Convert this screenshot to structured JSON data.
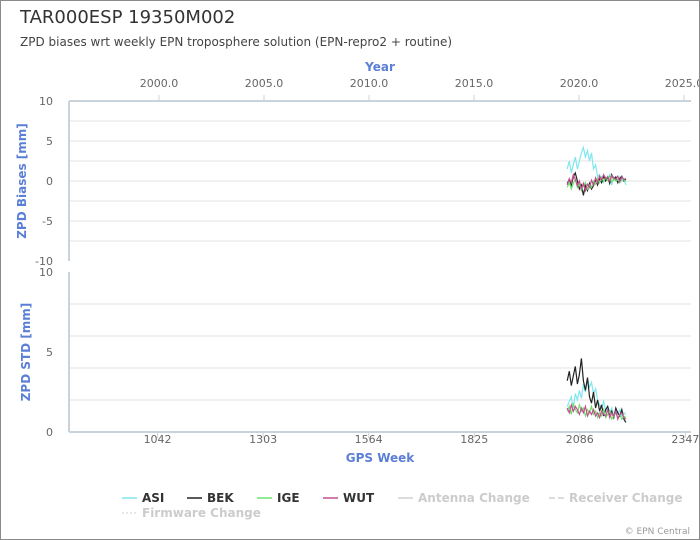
{
  "title": "TAR000ESP 19350M002",
  "subtitle": "ZPD biases wrt weekly EPN troposphere solution (EPN-repro2 + routine)",
  "credits": "© EPN Central",
  "chart_data": [
    {
      "type": "line",
      "panel": "biases",
      "ylabel": "ZPD Biases [mm]",
      "ylim": [
        -10,
        10
      ],
      "yticks": [
        "10",
        "5",
        "0",
        "-5",
        "-10"
      ],
      "x2label": "Year",
      "x2ticks": [
        "2000.0",
        "2005.0",
        "2010.0",
        "2015.0",
        "2020.0",
        "2025.0"
      ],
      "x_unit": "GPS week",
      "grid": true,
      "series": [
        {
          "name": "ASI",
          "color": "#7fe7ee",
          "x": [
            2055,
            2060,
            2065,
            2070,
            2075,
            2080,
            2085,
            2090,
            2095,
            2100,
            2105,
            2110,
            2115,
            2120,
            2125,
            2130,
            2135,
            2140,
            2145,
            2150,
            2155,
            2160,
            2165,
            2170,
            2175,
            2180,
            2185,
            2190,
            2195,
            2200
          ],
          "values": [
            1.5,
            2.5,
            1.0,
            2.0,
            3.0,
            1.5,
            2.5,
            3.5,
            4.2,
            3.0,
            3.8,
            2.5,
            3.5,
            1.5,
            2.0,
            0.5,
            0.8,
            0.0,
            -0.2,
            0.5,
            0.2,
            0.8,
            -0.5,
            0.5,
            0.3,
            -0.3,
            0.5,
            0.0,
            0.3,
            -0.5
          ]
        },
        {
          "name": "BEK",
          "color": "#222222",
          "x": [
            2055,
            2060,
            2065,
            2070,
            2075,
            2080,
            2085,
            2090,
            2095,
            2100,
            2105,
            2110,
            2115,
            2120,
            2125,
            2130,
            2135,
            2140,
            2145,
            2150,
            2155,
            2160,
            2165,
            2170,
            2175,
            2180,
            2185,
            2190,
            2195,
            2200
          ],
          "values": [
            -0.3,
            0.2,
            -0.5,
            0.5,
            1.0,
            0.0,
            -1.0,
            -0.5,
            -1.8,
            -0.5,
            -1.2,
            -0.3,
            -1.0,
            -0.6,
            0.2,
            -0.5,
            0.3,
            -0.2,
            0.6,
            0.0,
            0.5,
            -0.3,
            0.8,
            0.2,
            0.5,
            -0.2,
            0.3,
            0.6,
            0.0,
            0.2
          ]
        },
        {
          "name": "IGE",
          "color": "#6ee36e",
          "x": [
            2055,
            2060,
            2065,
            2070,
            2075,
            2080,
            2085,
            2090,
            2095,
            2100,
            2105,
            2110,
            2115,
            2120,
            2125,
            2130,
            2135,
            2140,
            2145,
            2150,
            2155,
            2160,
            2165,
            2170,
            2175,
            2180,
            2185,
            2190,
            2195,
            2200
          ],
          "values": [
            -0.8,
            -0.2,
            -1.0,
            -0.3,
            0.2,
            -0.8,
            -0.3,
            -1.2,
            -0.6,
            -0.2,
            -1.0,
            -0.5,
            -0.8,
            0.0,
            -0.4,
            0.3,
            -0.2,
            0.5,
            0.0,
            0.4,
            0.1,
            0.6,
            -0.1,
            0.3,
            0.0,
            0.2,
            -0.2,
            0.4,
            0.1,
            0.0
          ]
        },
        {
          "name": "WUT",
          "color": "#c44f8f",
          "x": [
            2055,
            2060,
            2065,
            2070,
            2075,
            2080,
            2085,
            2090,
            2095,
            2100,
            2105,
            2110,
            2115,
            2120,
            2125,
            2130,
            2135,
            2140,
            2145,
            2150,
            2155,
            2160,
            2165,
            2170,
            2175,
            2180,
            2185,
            2190,
            2195,
            2200
          ],
          "values": [
            -0.5,
            0.3,
            -0.2,
            0.8,
            0.2,
            -0.6,
            0.0,
            -1.0,
            -0.3,
            -1.2,
            -0.4,
            -0.8,
            0.1,
            -0.5,
            0.4,
            -0.2,
            0.6,
            0.1,
            0.8,
            0.3,
            0.5,
            0.0,
            0.7,
            0.4,
            0.2,
            0.6,
            -0.1,
            0.5,
            0.2,
            0.3
          ]
        }
      ]
    },
    {
      "type": "line",
      "panel": "std",
      "ylabel": "ZPD STD [mm]",
      "ylim": [
        0,
        10
      ],
      "yticks": [
        "10",
        "5",
        "0"
      ],
      "xlabel": "GPS Week",
      "xlim": [
        823,
        2361
      ],
      "xticks": [
        "1042",
        "1303",
        "1564",
        "1825",
        "2086",
        "2347"
      ],
      "grid": true,
      "series": [
        {
          "name": "ASI",
          "color": "#7fe7ee",
          "x": [
            2055,
            2060,
            2065,
            2070,
            2075,
            2080,
            2085,
            2090,
            2095,
            2100,
            2105,
            2110,
            2115,
            2120,
            2125,
            2130,
            2135,
            2140,
            2145,
            2150,
            2155,
            2160,
            2165,
            2170,
            2175,
            2180,
            2185,
            2190,
            2195,
            2200
          ],
          "values": [
            1.6,
            1.9,
            2.2,
            1.5,
            2.4,
            2.0,
            2.6,
            2.1,
            3.0,
            2.5,
            3.3,
            2.8,
            3.1,
            2.4,
            2.7,
            2.0,
            1.7,
            1.5,
            1.9,
            1.3,
            1.6,
            1.2,
            1.5,
            1.0,
            1.3,
            1.1,
            1.4,
            1.0,
            1.2,
            1.1
          ]
        },
        {
          "name": "BEK",
          "color": "#222222",
          "x": [
            2055,
            2060,
            2065,
            2070,
            2075,
            2080,
            2085,
            2090,
            2095,
            2100,
            2105,
            2110,
            2115,
            2120,
            2125,
            2130,
            2135,
            2140,
            2145,
            2150,
            2155,
            2160,
            2165,
            2170,
            2175,
            2180,
            2185,
            2190,
            2195,
            2200
          ],
          "values": [
            3.2,
            3.8,
            2.9,
            3.5,
            4.1,
            3.0,
            3.6,
            4.6,
            3.2,
            2.6,
            3.4,
            2.2,
            1.8,
            2.5,
            1.5,
            2.0,
            1.3,
            1.7,
            1.0,
            1.4,
            1.6,
            1.1,
            1.3,
            0.9,
            1.5,
            1.2,
            1.0,
            1.4,
            0.8,
            0.6
          ]
        },
        {
          "name": "IGE",
          "color": "#6ee36e",
          "x": [
            2055,
            2060,
            2065,
            2070,
            2075,
            2080,
            2085,
            2090,
            2095,
            2100,
            2105,
            2110,
            2115,
            2120,
            2125,
            2130,
            2135,
            2140,
            2145,
            2150,
            2155,
            2160,
            2165,
            2170,
            2175,
            2180,
            2185,
            2190,
            2195,
            2200
          ],
          "values": [
            1.3,
            1.6,
            1.1,
            1.8,
            1.4,
            1.2,
            1.7,
            1.3,
            1.5,
            1.0,
            1.4,
            1.2,
            1.6,
            1.1,
            1.3,
            0.9,
            1.2,
            1.0,
            1.4,
            0.9,
            1.1,
            1.3,
            0.8,
            1.0,
            1.2,
            0.9,
            1.1,
            0.8,
            1.0,
            0.9
          ]
        },
        {
          "name": "WUT",
          "color": "#c44f8f",
          "x": [
            2055,
            2060,
            2065,
            2070,
            2075,
            2080,
            2085,
            2090,
            2095,
            2100,
            2105,
            2110,
            2115,
            2120,
            2125,
            2130,
            2135,
            2140,
            2145,
            2150,
            2155,
            2160,
            2165,
            2170,
            2175,
            2180,
            2185,
            2190,
            2195,
            2200
          ],
          "values": [
            1.5,
            1.2,
            1.7,
            1.3,
            1.6,
            1.4,
            1.1,
            1.5,
            1.2,
            1.6,
            1.0,
            1.3,
            1.1,
            1.4,
            1.0,
            1.2,
            0.9,
            1.3,
            1.1,
            1.0,
            1.4,
            0.9,
            1.2,
            1.0,
            1.3,
            0.8,
            1.1,
            1.2,
            0.9,
            0.8
          ]
        }
      ]
    }
  ],
  "legend": [
    {
      "label": "ASI",
      "color": "#7fe7ee",
      "dash": "none",
      "muted": false
    },
    {
      "label": "BEK",
      "color": "#222222",
      "dash": "none",
      "muted": false
    },
    {
      "label": "IGE",
      "color": "#6ee36e",
      "dash": "none",
      "muted": false
    },
    {
      "label": "WUT",
      "color": "#c44f8f",
      "dash": "none",
      "muted": false
    },
    {
      "label": "Antenna Change",
      "color": "#d0d0d0",
      "dash": "none",
      "muted": true
    },
    {
      "label": "Receiver Change",
      "color": "#d0d0d0",
      "dash": "6,3",
      "muted": true
    },
    {
      "label": "Firmware Change",
      "color": "#dddddd",
      "dash": "2,2",
      "muted": true
    }
  ]
}
